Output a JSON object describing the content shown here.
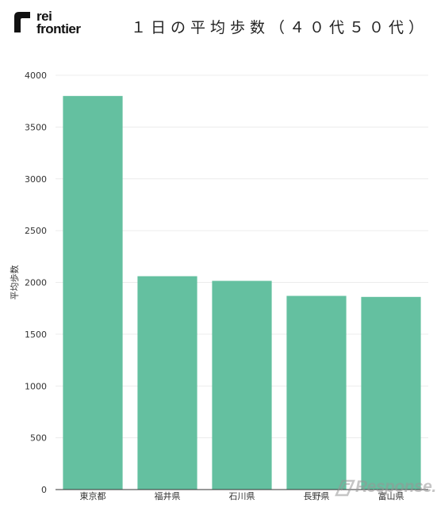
{
  "logo": {
    "line1": "rei",
    "line2": "frontier"
  },
  "watermark": {
    "text": "Response."
  },
  "chart_data": {
    "type": "bar",
    "title": "１日の平均歩数（４０代５０代）",
    "xlabel": "",
    "ylabel": "平均歩数",
    "categories": [
      "東京都",
      "福井県",
      "石川県",
      "長野県",
      "富山県"
    ],
    "series": [
      {
        "values": [
          3800,
          2060,
          2015,
          1870,
          1860
        ]
      }
    ],
    "ylim": [
      0,
      4000
    ],
    "yticks": [
      0,
      500,
      1000,
      1500,
      2000,
      2500,
      3000,
      3500,
      4000
    ],
    "grid": true,
    "legend": "none",
    "colors": {
      "bar": "#64c0a0",
      "grid": "#ececec",
      "axis": "#333333"
    }
  }
}
